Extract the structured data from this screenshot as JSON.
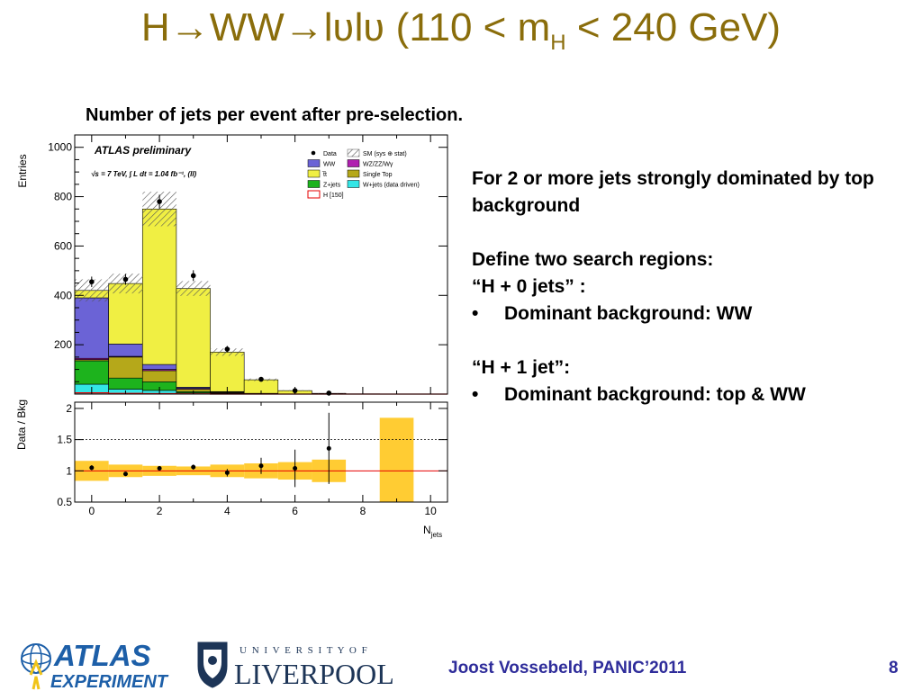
{
  "title": {
    "prefix": "H",
    "arrow": "→",
    "ww": "WW",
    "lvlv": "lʋlʋ",
    "range_open": " (110 < m",
    "range_sub": "H",
    "range_close": " < 240 GeV)"
  },
  "caption": "Number of jets per event after pre-selection.",
  "notes": {
    "line1": "For 2 or more jets strongly dominated by top background",
    "line2": "Define two search regions:",
    "line3": "“H + 0 jets” :",
    "bullet1": "Dominant background: WW",
    "line4": "“H + 1 jet”:",
    "bullet2": "Dominant background: top & WW",
    "bullet_char": "•"
  },
  "footer": {
    "author": "Joost Vossebeld, PANIC’2011",
    "page": "8"
  },
  "logos": {
    "atlas_top": "ATLAS",
    "atlas_bottom": "EXPERIMENT",
    "uni_top": "U N I V E R S I T Y   O F",
    "uni_bottom": "LIVERPOOL"
  },
  "colors": {
    "title": "#8a6d0b",
    "footer": "#2e2c9a",
    "ww": "#6b63d6",
    "ttbar": "#f0ef43",
    "zjets": "#1db31d",
    "wzzz": "#b020b0",
    "single_top": "#b5a81a",
    "wjets": "#33e6e6",
    "higgs": "#e60000",
    "band": "#ffcc33"
  },
  "chart_data": [
    {
      "type": "bar",
      "stacked": true,
      "title": "ATLAS preliminary",
      "subtitle": "√s = 7 TeV, ∫ L dt = 1.04 fb⁻¹, (ll)",
      "ylabel": "Entries",
      "xlabel": "N_jets",
      "xlim": [
        -0.5,
        10.5
      ],
      "ylim": [
        0,
        1050
      ],
      "yticks": [
        200,
        400,
        600,
        800,
        1000
      ],
      "bins": [
        0,
        1,
        2,
        3,
        4,
        5,
        6,
        7,
        8,
        9,
        10
      ],
      "series": [
        {
          "name": "W+jets (data driven)",
          "color": "#33e6e6",
          "values": [
            40,
            20,
            15,
            5,
            2,
            1,
            0,
            0,
            0,
            0,
            0
          ]
        },
        {
          "name": "Z+jets",
          "color": "#1db31d",
          "values": [
            95,
            45,
            35,
            5,
            2,
            1,
            0,
            0,
            0,
            0,
            0
          ]
        },
        {
          "name": "Single Top",
          "color": "#b5a81a",
          "values": [
            5,
            85,
            45,
            10,
            3,
            1,
            0,
            0,
            0,
            0,
            0
          ]
        },
        {
          "name": "WZ/ZZ/Wγ",
          "color": "#b020b0",
          "values": [
            5,
            3,
            5,
            3,
            1,
            0,
            0,
            0,
            0,
            0,
            0
          ]
        },
        {
          "name": "WW",
          "color": "#6b63d6",
          "values": [
            245,
            50,
            20,
            5,
            2,
            0,
            0,
            0,
            0,
            0,
            0
          ]
        },
        {
          "name": "t̅t",
          "color": "#f0ef43",
          "values": [
            30,
            245,
            630,
            400,
            160,
            55,
            14,
            3,
            1,
            0,
            0
          ]
        }
      ],
      "higgs": {
        "name": "H [150]",
        "color": "#e60000",
        "values": [
          5,
          3,
          2,
          1,
          0,
          0,
          0,
          0,
          0,
          0,
          0
        ]
      },
      "uncertainty": {
        "name": "SM (sys ⊕ stat)",
        "values": [
          45,
          40,
          70,
          30,
          15,
          5,
          2,
          1,
          0,
          0,
          0
        ]
      },
      "data": {
        "name": "Data",
        "x": [
          0,
          1,
          2,
          3,
          4,
          5,
          6,
          7
        ],
        "y": [
          455,
          465,
          780,
          480,
          182,
          60,
          14,
          4
        ],
        "err": [
          21,
          22,
          28,
          22,
          13,
          8,
          4,
          2
        ]
      }
    },
    {
      "type": "scatter",
      "ylabel": "Data / Bkg",
      "xlabel": "N_jets",
      "xlim": [
        -0.5,
        10.5
      ],
      "ylim": [
        0.5,
        2.1
      ],
      "yticks": [
        0.5,
        1,
        1.5,
        2
      ],
      "yticklabels": [
        "0.5",
        "1",
        "1.5",
        "2"
      ],
      "xticks": [
        0,
        2,
        4,
        6,
        8,
        10
      ],
      "reference_dashed": 1.5,
      "reference_line": 1.0,
      "band": {
        "x": [
          0,
          1,
          2,
          3,
          4,
          5,
          6,
          7,
          8,
          9
        ],
        "lo": [
          0.84,
          0.9,
          0.92,
          0.93,
          0.9,
          0.88,
          0.86,
          0.82,
          null,
          0.5
        ],
        "hi": [
          1.16,
          1.1,
          1.08,
          1.07,
          1.1,
          1.12,
          1.14,
          1.18,
          null,
          1.85
        ]
      },
      "points": {
        "x": [
          0,
          1,
          2,
          3,
          4,
          5,
          6,
          7
        ],
        "y": [
          1.05,
          0.95,
          1.04,
          1.06,
          0.97,
          1.08,
          1.04,
          1.36
        ],
        "err": [
          0.04,
          0.03,
          0.03,
          0.04,
          0.06,
          0.13,
          0.3,
          0.57
        ]
      }
    }
  ]
}
